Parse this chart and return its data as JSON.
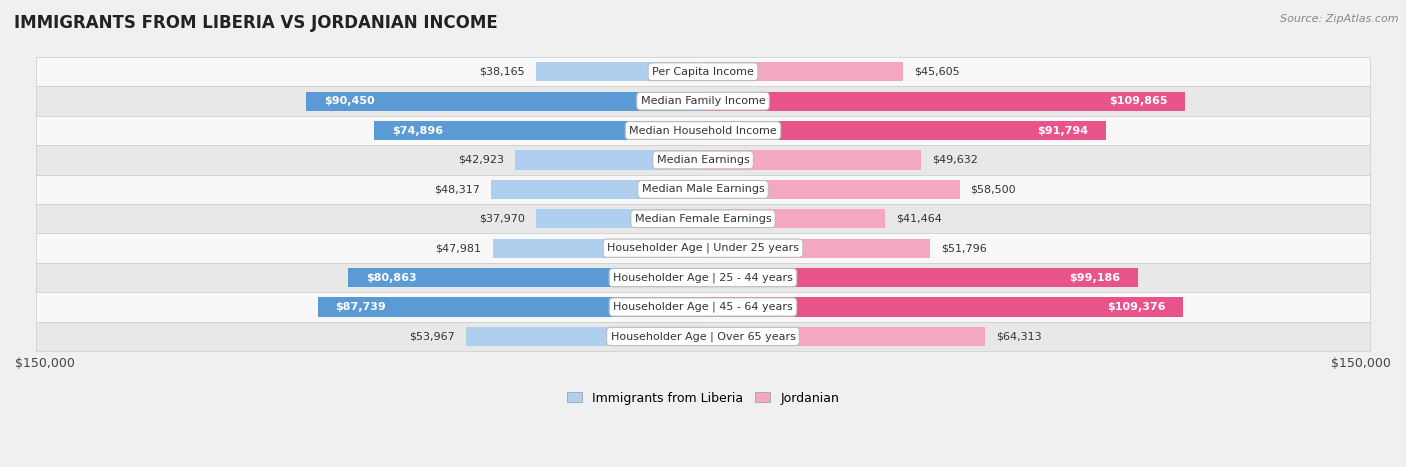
{
  "title": "IMMIGRANTS FROM LIBERIA VS JORDANIAN INCOME",
  "source": "Source: ZipAtlas.com",
  "categories": [
    "Per Capita Income",
    "Median Family Income",
    "Median Household Income",
    "Median Earnings",
    "Median Male Earnings",
    "Median Female Earnings",
    "Householder Age | Under 25 years",
    "Householder Age | 25 - 44 years",
    "Householder Age | 45 - 64 years",
    "Householder Age | Over 65 years"
  ],
  "liberia_values": [
    38165,
    90450,
    74896,
    42923,
    48317,
    37970,
    47981,
    80863,
    87739,
    53967
  ],
  "jordanian_values": [
    45605,
    109865,
    91794,
    49632,
    58500,
    41464,
    51796,
    99186,
    109376,
    64313
  ],
  "liberia_color_light": "#aecfee",
  "liberia_color_dark": "#5b9bd5",
  "jordanian_color_light": "#f4a7c3",
  "jordanian_color_dark": "#e8538a",
  "liberia_dark_threshold": 70000,
  "jordanian_dark_threshold": 90000,
  "max_value": 150000,
  "bg_color": "#f0f0f0",
  "row_bg_light": "#f8f8f8",
  "row_bg_dark": "#e8e8e8",
  "label_fontsize": 8.0,
  "title_fontsize": 12,
  "source_fontsize": 8,
  "legend_fontsize": 9,
  "value_fontsize": 8.0
}
